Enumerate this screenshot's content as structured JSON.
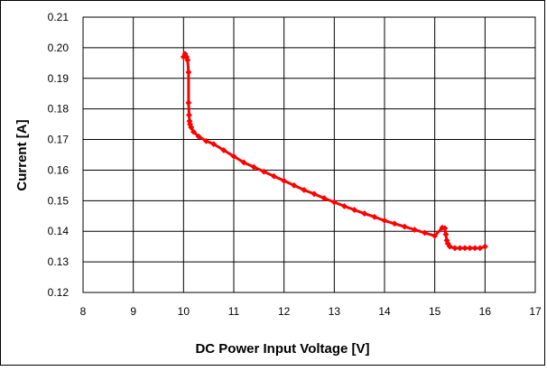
{
  "chart_data": {
    "type": "scatter",
    "xlabel": "DC Power Input Voltage [V]",
    "ylabel": "Current [A]",
    "xlim": [
      8,
      17
    ],
    "ylim": [
      0.12,
      0.21
    ],
    "x_ticks": [
      "8",
      "9",
      "10",
      "11",
      "12",
      "13",
      "14",
      "15",
      "16",
      "17"
    ],
    "y_ticks": [
      "0.12",
      "0.13",
      "0.14",
      "0.15",
      "0.16",
      "0.17",
      "0.18",
      "0.19",
      "0.20",
      "0.21"
    ],
    "grid": true,
    "series": [
      {
        "color": "#ff0000",
        "marker": "diamond",
        "x": [
          10.0,
          10.03,
          10.06,
          10.08,
          10.1,
          10.1,
          10.11,
          10.12,
          10.13,
          10.15,
          10.2,
          10.3,
          10.45,
          10.6,
          10.8,
          11.0,
          11.2,
          11.4,
          11.6,
          11.8,
          12.0,
          12.2,
          12.4,
          12.6,
          12.8,
          13.0,
          13.2,
          13.4,
          13.6,
          13.8,
          14.0,
          14.2,
          14.4,
          14.6,
          14.8,
          15.0,
          15.15,
          15.2,
          15.22,
          15.24,
          15.26,
          15.3,
          15.4,
          15.5,
          15.6,
          15.7,
          15.8,
          15.9,
          16.0
        ],
        "y": [
          0.197,
          0.198,
          0.197,
          0.196,
          0.192,
          0.182,
          0.178,
          0.176,
          0.175,
          0.174,
          0.1725,
          0.171,
          0.1695,
          0.1685,
          0.1665,
          0.1645,
          0.1625,
          0.161,
          0.1595,
          0.158,
          0.1565,
          0.155,
          0.1535,
          0.1522,
          0.1508,
          0.1495,
          0.1482,
          0.147,
          0.1458,
          0.1447,
          0.1435,
          0.1425,
          0.1415,
          0.1405,
          0.1395,
          0.1385,
          0.1412,
          0.141,
          0.139,
          0.137,
          0.136,
          0.135,
          0.1345,
          0.1345,
          0.1345,
          0.1345,
          0.1345,
          0.1345,
          0.135
        ]
      }
    ]
  }
}
